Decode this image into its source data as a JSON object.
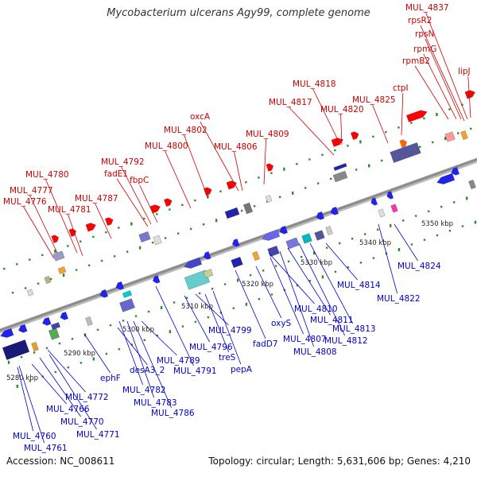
{
  "title": "Mycobacterium ulcerans Agy99, complete genome",
  "accession": "Accession: NC_008611",
  "summary": "Topology: circular; Length: 5,631,606 bp; Genes: 4,210",
  "colors": {
    "top_label": "#cc0000",
    "bottom_label": "#0000cc",
    "backbone": "#8c8c8c",
    "tick": "#2e8b2e"
  },
  "kbp_ticks": [
    {
      "label": "5280 kbp",
      "pos": 5280
    },
    {
      "label": "5290 kbp",
      "pos": 5290
    },
    {
      "label": "5300 kbp",
      "pos": 5300
    },
    {
      "label": "5310 kbp",
      "pos": 5310
    },
    {
      "label": "5320 kbp",
      "pos": 5320
    },
    {
      "label": "5330 kbp",
      "pos": 5330
    },
    {
      "label": "5340 kbp",
      "pos": 5340
    },
    {
      "label": "5350 kbp",
      "pos": 5350
    }
  ],
  "top_genes": [
    {
      "label": "MUL_4776"
    },
    {
      "label": "MUL_4777"
    },
    {
      "label": "MUL_4780"
    },
    {
      "label": "MUL_4781"
    },
    {
      "label": "MUL_4787"
    },
    {
      "label": "fadE1"
    },
    {
      "label": "MUL_4792"
    },
    {
      "label": "fbpC"
    },
    {
      "label": "MUL_4800"
    },
    {
      "label": "MUL_4802"
    },
    {
      "label": "oxcA"
    },
    {
      "label": "MUL_4806"
    },
    {
      "label": "MUL_4809"
    },
    {
      "label": "MUL_4817"
    },
    {
      "label": "MUL_4818"
    },
    {
      "label": "MUL_4820"
    },
    {
      "label": "MUL_4825"
    },
    {
      "label": "ctpI"
    },
    {
      "label": "rpmB2"
    },
    {
      "label": "rpmG"
    },
    {
      "label": "rpsN"
    },
    {
      "label": "rpsR2"
    },
    {
      "label": "MUL_4837"
    },
    {
      "label": "lipJ"
    }
  ],
  "bottom_genes": [
    {
      "label": "MUL_4760"
    },
    {
      "label": "MUL_4761"
    },
    {
      "label": "MUL_4766"
    },
    {
      "label": "MUL_4770"
    },
    {
      "label": "MUL_4771"
    },
    {
      "label": "MUL_4772"
    },
    {
      "label": "ephF"
    },
    {
      "label": "MUL_4782"
    },
    {
      "label": "desA3_2"
    },
    {
      "label": "MUL_4783"
    },
    {
      "label": "MUL_4786"
    },
    {
      "label": "MUL_4789"
    },
    {
      "label": "MUL_4791"
    },
    {
      "label": "MUL_4796"
    },
    {
      "label": "MUL_4799"
    },
    {
      "label": "treS"
    },
    {
      "label": "pepA"
    },
    {
      "label": "fadD7"
    },
    {
      "label": "oxyS"
    },
    {
      "label": "MUL_4807"
    },
    {
      "label": "MUL_4808"
    },
    {
      "label": "MUL_4810"
    },
    {
      "label": "MUL_4811"
    },
    {
      "label": "MUL_4812"
    },
    {
      "label": "MUL_4813"
    },
    {
      "label": "MUL_4814"
    },
    {
      "label": "MUL_4822"
    },
    {
      "label": "MUL_4824"
    }
  ]
}
